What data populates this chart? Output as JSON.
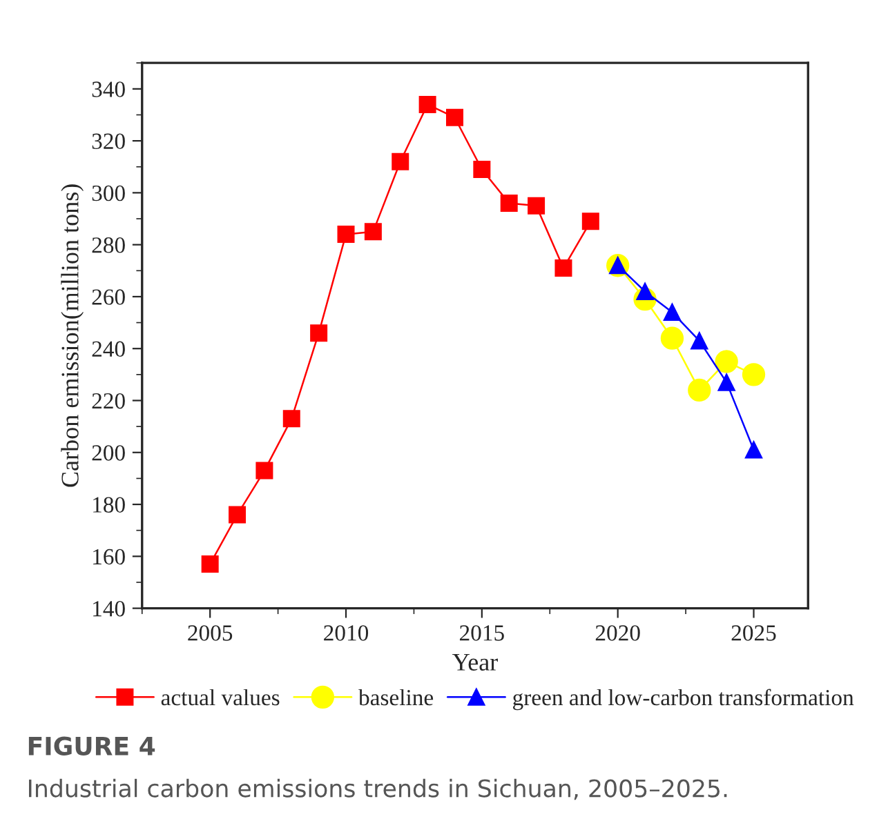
{
  "chart_data": {
    "type": "line",
    "xlabel": "Year",
    "ylabel": "Carbon emission(million tons)",
    "xlim": [
      2002.5,
      2027
    ],
    "xticks": [
      2005,
      2010,
      2015,
      2020,
      2025
    ],
    "ylim": [
      140,
      350
    ],
    "yticks": [
      140,
      160,
      180,
      200,
      220,
      240,
      260,
      280,
      300,
      320,
      340
    ],
    "legend": "bottom",
    "grid": false,
    "series": [
      {
        "name": "actual values",
        "color": "#ff0000",
        "marker": "square",
        "x": [
          2005,
          2006,
          2007,
          2008,
          2009,
          2010,
          2011,
          2012,
          2013,
          2014,
          2015,
          2016,
          2017,
          2018,
          2019
        ],
        "values": [
          157,
          176,
          193,
          213,
          246,
          284,
          285,
          312,
          334,
          329,
          309,
          296,
          295,
          271,
          289
        ]
      },
      {
        "name": "baseline",
        "color": "#ffff00",
        "marker": "circle",
        "x": [
          2020,
          2021,
          2022,
          2023,
          2024,
          2025
        ],
        "values": [
          272,
          259,
          244,
          224,
          235,
          230
        ]
      },
      {
        "name": "green and low-carbon transformation",
        "color": "#0000ff",
        "marker": "triangle",
        "x": [
          2020,
          2021,
          2022,
          2023,
          2024,
          2025
        ],
        "values": [
          272,
          262,
          254,
          243,
          227,
          201
        ]
      }
    ],
    "annotations": [
      "FIGURE 4",
      "Industrial carbon emissions trends in Sichuan, 2005–2025."
    ]
  }
}
